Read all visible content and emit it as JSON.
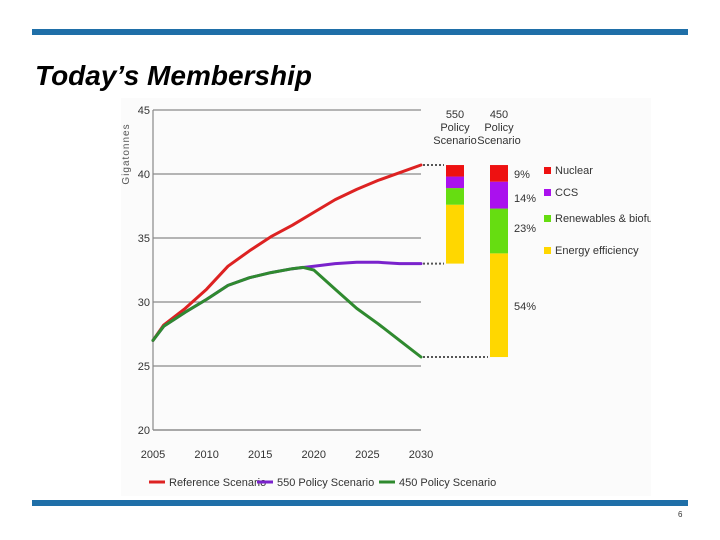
{
  "slide": {
    "title": "Today’s Membership",
    "page_number": "6"
  },
  "colors": {
    "accent_bar": "#1f6fa8",
    "reference": "#dd2222",
    "policy550": "#7a22cc",
    "policy450": "#2f8a2f",
    "nuclear": "#ee1111",
    "ccs": "#aa11ee",
    "renewables": "#66dd11",
    "efficiency": "#ffd700"
  },
  "chart_data": {
    "type": "line",
    "ylabel": "Gigatonnes",
    "xlabel": "",
    "ylim": [
      20,
      45
    ],
    "xlim": [
      2005,
      2030
    ],
    "x_ticks": [
      "2005",
      "2010",
      "2015",
      "2020",
      "2025",
      "2030"
    ],
    "y_ticks": [
      "20",
      "25",
      "30",
      "35",
      "40",
      "45"
    ],
    "grid": "horizontal",
    "series": [
      {
        "name": "Reference Scenario",
        "color_key": "reference",
        "x": [
          2005,
          2006,
          2008,
          2010,
          2012,
          2014,
          2016,
          2018,
          2020,
          2022,
          2024,
          2026,
          2028,
          2030
        ],
        "y": [
          27.0,
          28.2,
          29.5,
          31.0,
          32.8,
          34.0,
          35.1,
          36.0,
          37.0,
          38.0,
          38.8,
          39.5,
          40.1,
          40.7
        ]
      },
      {
        "name": "550 Policy Scenario",
        "color_key": "policy550",
        "x": [
          2005,
          2006,
          2008,
          2010,
          2012,
          2014,
          2016,
          2018,
          2020,
          2022,
          2024,
          2026,
          2028,
          2030
        ],
        "y": [
          27.0,
          28.1,
          29.2,
          30.2,
          31.3,
          31.9,
          32.3,
          32.6,
          32.8,
          33.0,
          33.1,
          33.1,
          33.0,
          33.0
        ]
      },
      {
        "name": "450 Policy Scenario",
        "color_key": "policy450",
        "x": [
          2005,
          2006,
          2008,
          2010,
          2012,
          2014,
          2016,
          2018,
          2019,
          2020,
          2022,
          2024,
          2026,
          2028,
          2030
        ],
        "y": [
          27.0,
          28.1,
          29.2,
          30.2,
          31.3,
          31.9,
          32.3,
          32.6,
          32.7,
          32.5,
          31.0,
          29.5,
          28.3,
          27.0,
          25.7
        ]
      }
    ],
    "stacked_bars": {
      "value_unit": "Gigatonnes",
      "bars": [
        {
          "label_lines": [
            "550",
            "Policy",
            "Scenario"
          ],
          "bottom": 33.0,
          "top": 40.7,
          "segments": [
            {
              "key": "efficiency",
              "from": 33.0,
              "to": 37.6
            },
            {
              "key": "renewables",
              "from": 37.6,
              "to": 38.9
            },
            {
              "key": "ccs",
              "from": 38.9,
              "to": 39.8
            },
            {
              "key": "nuclear",
              "from": 39.8,
              "to": 40.7
            }
          ]
        },
        {
          "label_lines": [
            "450",
            "Policy",
            "Scenario"
          ],
          "bottom": 25.7,
          "top": 40.7,
          "segments": [
            {
              "key": "efficiency",
              "from": 25.7,
              "to": 33.8
            },
            {
              "key": "renewables",
              "from": 33.8,
              "to": 37.3
            },
            {
              "key": "ccs",
              "from": 37.3,
              "to": 39.4
            },
            {
              "key": "nuclear",
              "from": 39.4,
              "to": 40.7
            }
          ]
        }
      ],
      "percent_labels": [
        {
          "text": "9%",
          "key": "nuclear"
        },
        {
          "text": "14%",
          "key": "ccs"
        },
        {
          "text": "23%",
          "key": "renewables"
        },
        {
          "text": "54%",
          "key": "efficiency"
        }
      ]
    },
    "wedge_legend": [
      {
        "label": "Nuclear",
        "key": "nuclear"
      },
      {
        "label": "CCS",
        "key": "ccs"
      },
      {
        "label": "Renewables & biofuels",
        "key": "renewables"
      },
      {
        "label": "Energy efficiency",
        "key": "efficiency"
      }
    ],
    "legend_placement": "bottom"
  }
}
